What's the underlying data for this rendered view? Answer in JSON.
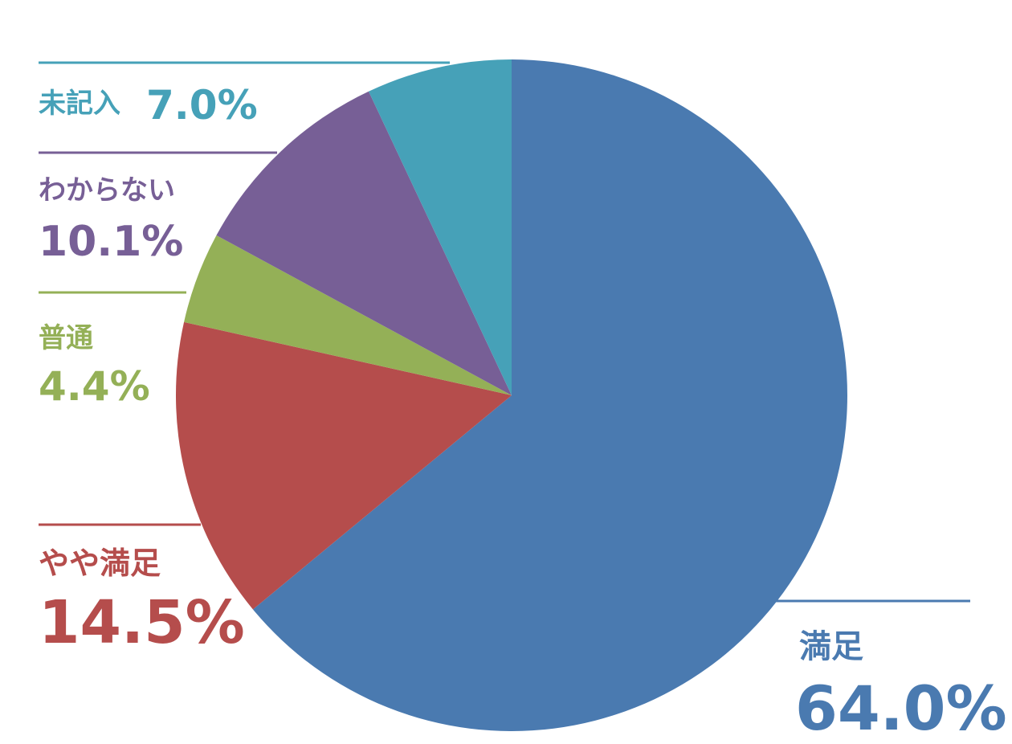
{
  "chart_data": {
    "type": "pie",
    "categories": [
      "満足",
      "やや満足",
      "普通",
      "わからない",
      "未記入"
    ],
    "values": [
      64.0,
      14.5,
      4.4,
      10.1,
      7.0
    ],
    "value_labels": [
      "64.0%",
      "14.5%",
      "4.4%",
      "10.1%",
      "7.0%"
    ],
    "colors": [
      "#4a7ab0",
      "#b54d4c",
      "#94b057",
      "#775f96",
      "#46a1b8"
    ]
  }
}
